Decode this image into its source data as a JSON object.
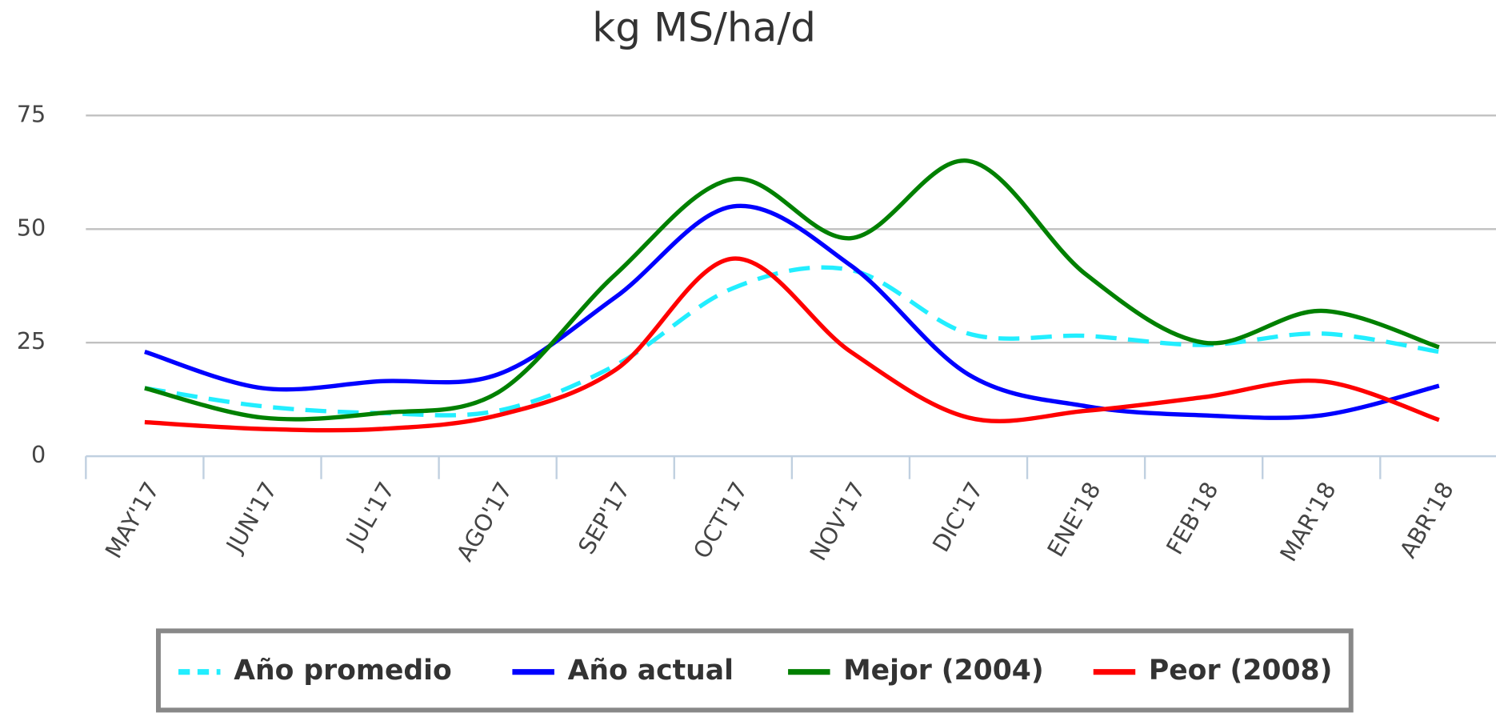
{
  "chart_data": {
    "type": "line",
    "title": "kg MS/ha/d",
    "categories": [
      "MAY'17",
      "JUN'17",
      "JUL'17",
      "AGO'17",
      "SEP'17",
      "OCT'17",
      "NOV'17",
      "DIC'17",
      "ENE'18",
      "FEB'18",
      "MAR'18",
      "ABR'18"
    ],
    "series": [
      {
        "name": "Año promedio",
        "color": "#22eeff",
        "dashed": true,
        "values": [
          15,
          11,
          9.5,
          10,
          20,
          37,
          41,
          27,
          26.5,
          24.5,
          27,
          23
        ]
      },
      {
        "name": "Año actual",
        "color": "#0000ff",
        "values": [
          23,
          15,
          16.5,
          18,
          35,
          55,
          42,
          18,
          11,
          9,
          9,
          15.5
        ]
      },
      {
        "name": "Mejor (2004)",
        "color": "#008000",
        "values": [
          15,
          8.5,
          9.5,
          14,
          40,
          61,
          48,
          65,
          40,
          25,
          32,
          24
        ]
      },
      {
        "name": "Peor (2008)",
        "color": "#ff0000",
        "values": [
          7.5,
          6,
          6,
          9,
          19,
          43.5,
          23,
          8.5,
          10,
          13,
          16.5,
          8
        ]
      }
    ],
    "ylim": [
      0,
      75
    ],
    "yticks": [
      0,
      25,
      50,
      75
    ],
    "grid": true,
    "legend": "bottom"
  }
}
